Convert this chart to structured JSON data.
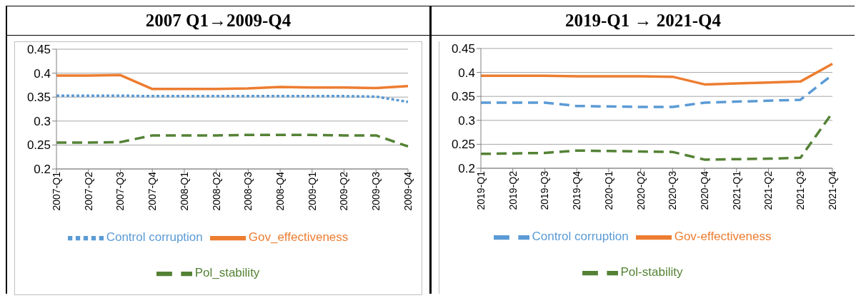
{
  "chart_data": [
    {
      "type": "line",
      "title": "2007 Q1→2009-Q4",
      "categories": [
        "2007-Q1",
        "2007-Q2",
        "2007-Q3",
        "2007-Q4",
        "2008-Q1",
        "2008-Q2",
        "2008-Q3",
        "2008-Q4",
        "2009-Q1",
        "2009-Q2",
        "2009-Q3",
        "2009-Q4"
      ],
      "series": [
        {
          "name": "Control corruption",
          "color": "#5b9bd5",
          "line_style": "dotted",
          "values": [
            0.353,
            0.353,
            0.353,
            0.352,
            0.352,
            0.352,
            0.352,
            0.352,
            0.352,
            0.352,
            0.351,
            0.34
          ]
        },
        {
          "name": "Gov_effectiveness",
          "color": "#ed7d31",
          "line_style": "solid",
          "values": [
            0.395,
            0.395,
            0.396,
            0.367,
            0.367,
            0.367,
            0.368,
            0.371,
            0.37,
            0.37,
            0.369,
            0.373
          ]
        },
        {
          "name": "Pol_stability",
          "color": "#548235",
          "line_style": "dashed",
          "values": [
            0.255,
            0.255,
            0.256,
            0.27,
            0.27,
            0.27,
            0.271,
            0.271,
            0.271,
            0.27,
            0.27,
            0.247
          ]
        }
      ],
      "ylim": [
        0.2,
        0.45
      ],
      "yticks": [
        0.2,
        0.25,
        0.3,
        0.35,
        0.4,
        0.45
      ],
      "grid": "y",
      "legend": "bottom",
      "marker": "none"
    },
    {
      "type": "line",
      "title": "2019-Q1 → 2021-Q4",
      "categories": [
        "2019-Q1",
        "2019-Q2",
        "2019-Q3",
        "2019-Q4",
        "2020-Q1",
        "2020-Q2",
        "2020-Q3",
        "2020-Q4",
        "2021-Q1",
        "2021-Q2",
        "2021-Q3",
        "2021-Q4"
      ],
      "series": [
        {
          "name": "Control corruption",
          "color": "#5b9bd5",
          "line_style": "dashed",
          "values": [
            0.337,
            0.337,
            0.337,
            0.33,
            0.329,
            0.328,
            0.328,
            0.337,
            0.339,
            0.341,
            0.343,
            0.395
          ]
        },
        {
          "name": "Gov-effectiveness",
          "color": "#ed7d31",
          "line_style": "solid",
          "values": [
            0.393,
            0.393,
            0.393,
            0.392,
            0.392,
            0.392,
            0.391,
            0.375,
            0.377,
            0.379,
            0.381,
            0.418
          ]
        },
        {
          "name": "Pol-stability",
          "color": "#548235",
          "line_style": "dashed",
          "values": [
            0.23,
            0.231,
            0.232,
            0.237,
            0.236,
            0.235,
            0.234,
            0.218,
            0.219,
            0.22,
            0.222,
            0.316
          ]
        }
      ],
      "ylim": [
        0.2,
        0.45
      ],
      "yticks": [
        0.2,
        0.25,
        0.3,
        0.35,
        0.4,
        0.45
      ],
      "grid": "y",
      "legend": "bottom",
      "marker": "none"
    }
  ]
}
